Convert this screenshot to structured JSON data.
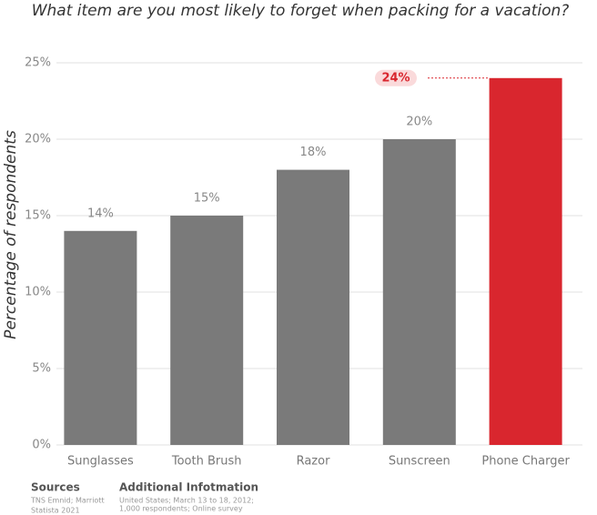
{
  "chart_data": {
    "type": "bar",
    "title": "What item are you most likely to forget when packing for a vacation?",
    "y_label": "Percentage of respondents",
    "categories": [
      "Sunglasses",
      "Tooth Brush",
      "Razor",
      "Sunscreen",
      "Phone Charger"
    ],
    "values": [
      14,
      15,
      18,
      20,
      24
    ],
    "value_labels": [
      "14%",
      "15%",
      "18%",
      "20%",
      "24%"
    ],
    "colors": [
      "#7a7a7a",
      "#7a7a7a",
      "#7a7a7a",
      "#7a7a7a",
      "#d9262e"
    ],
    "highlight": 4,
    "ylim": [
      0,
      25
    ],
    "yticks": [
      {
        "value": 0,
        "label": "0%"
      },
      {
        "value": 5,
        "label": "5%"
      },
      {
        "value": 10,
        "label": "10%"
      },
      {
        "value": 15,
        "label": "15%"
      },
      {
        "value": 20,
        "label": "20%"
      },
      {
        "value": 25,
        "label": "25%"
      }
    ],
    "grid": true
  },
  "footer": {
    "sources_title": "Sources",
    "sources": [
      "TNS Emnid; Marriott",
      "Statista 2021"
    ],
    "info_title": "Additional Infotmation",
    "info": [
      "United States; March 13 to 18, 2012;",
      "1,000 respondents; Online survey"
    ]
  }
}
